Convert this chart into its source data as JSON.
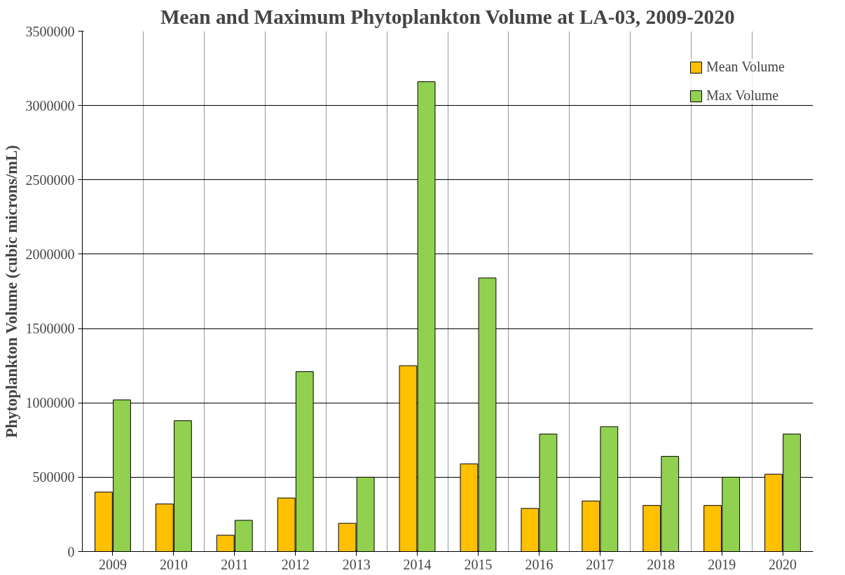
{
  "chart_data": {
    "type": "bar",
    "title": "Mean and Maximum Phytoplankton Volume at LA-03, 2009-2020",
    "ylabel": "Phytoplankton Volume (cubic microns/mL)",
    "categories": [
      "2009",
      "2010",
      "2011",
      "2012",
      "2013",
      "2014",
      "2015",
      "2016",
      "2017",
      "2018",
      "2019",
      "2020"
    ],
    "series": [
      {
        "name": "Mean Volume",
        "color": "#ffc000",
        "values": [
          400000,
          320000,
          110000,
          360000,
          190000,
          1250000,
          590000,
          290000,
          340000,
          310000,
          310000,
          520000
        ]
      },
      {
        "name": "Max Volume",
        "color": "#92d050",
        "values": [
          1020000,
          880000,
          210000,
          1210000,
          500000,
          3160000,
          1840000,
          790000,
          840000,
          640000,
          500000,
          790000
        ]
      }
    ],
    "ylim": [
      0,
      3500000
    ],
    "yticks": [
      0,
      500000,
      1000000,
      1500000,
      2000000,
      2500000,
      3000000,
      3500000
    ],
    "grid": true,
    "legend": "top right"
  }
}
